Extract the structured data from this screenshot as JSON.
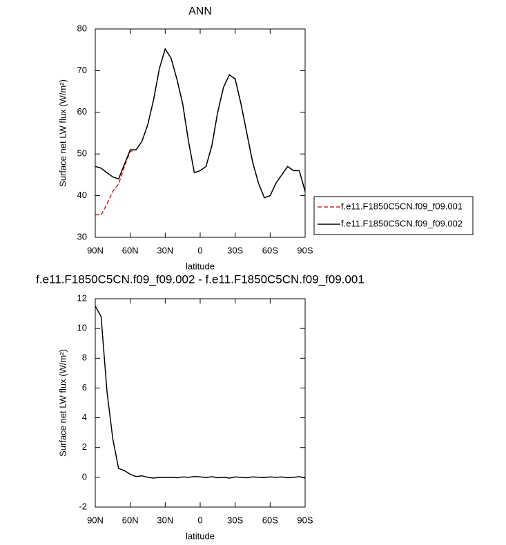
{
  "chart_data": [
    {
      "type": "line",
      "title": "ANN",
      "xlabel": "latitude",
      "ylabel": "Surface net LW flux (W/m²)",
      "x": [
        90,
        85,
        80,
        75,
        70,
        65,
        60,
        55,
        50,
        45,
        40,
        35,
        30,
        25,
        20,
        15,
        10,
        5,
        0,
        -5,
        -10,
        -15,
        -20,
        -25,
        -30,
        -35,
        -40,
        -45,
        -50,
        -55,
        -60,
        -65,
        -70,
        -75,
        -80,
        -85,
        -90
      ],
      "series": [
        {
          "name": "f.e11.F1850C5CN.f09_f09.001",
          "color": "#d62020",
          "dash": "dashed",
          "values": [
            35.5,
            35.3,
            38,
            41,
            42.8,
            47,
            50.6,
            51,
            53,
            57,
            63,
            70.5,
            75.2,
            73,
            68,
            62,
            53,
            45.5,
            46,
            47,
            52,
            60,
            66,
            69,
            68,
            62,
            55,
            48,
            43,
            39.5,
            40,
            43,
            45,
            47,
            46,
            46,
            41
          ]
        },
        {
          "name": "f.e11.F1850C5CN.f09_f09.002",
          "color": "#000000",
          "dash": "solid",
          "values": [
            47,
            46.6,
            45.5,
            44.5,
            44,
            47.5,
            51,
            51,
            53,
            57,
            63,
            70.5,
            75.2,
            73,
            68,
            62,
            53,
            45.5,
            46,
            47,
            52,
            60,
            66,
            69,
            68,
            62,
            55,
            48,
            43,
            39.5,
            40,
            43,
            45,
            47,
            46,
            46,
            41
          ]
        }
      ],
      "xlim": [
        90,
        -90
      ],
      "xticks": [
        {
          "value": 90,
          "label": "90N"
        },
        {
          "value": 60,
          "label": "60N"
        },
        {
          "value": 30,
          "label": "30N"
        },
        0,
        {
          "value": -30,
          "label": "30S"
        },
        {
          "value": -60,
          "label": "60S"
        },
        {
          "value": -90,
          "label": "90S"
        }
      ],
      "ylim": [
        30,
        80
      ],
      "yticks": [
        30,
        40,
        50,
        60,
        70,
        80
      ],
      "legend": "right"
    },
    {
      "type": "line",
      "title": "f.e11.F1850C5CN.f09_f09.002 - f.e11.F1850C5CN.f09_f09.001",
      "xlabel": "latitude",
      "ylabel": "Surface net LW flux (W/m²)",
      "x": [
        90,
        85,
        80,
        75,
        70,
        65,
        60,
        55,
        50,
        45,
        40,
        35,
        30,
        25,
        20,
        15,
        10,
        5,
        0,
        -5,
        -10,
        -15,
        -20,
        -25,
        -30,
        -35,
        -40,
        -45,
        -50,
        -55,
        -60,
        -65,
        -70,
        -75,
        -80,
        -85,
        -90
      ],
      "series": [
        {
          "color": "#000000",
          "dash": "solid",
          "values": [
            11.5,
            10.8,
            5.8,
            2.6,
            0.6,
            0.45,
            0.2,
            0.05,
            0.1,
            0,
            -0.05,
            0,
            -0.02,
            0,
            -0.03,
            0.02,
            0,
            0.05,
            0.03,
            -0.02,
            0.04,
            -0.03,
            0,
            -0.05,
            0.02,
            0,
            -0.03,
            0.03,
            0,
            -0.02,
            0.03,
            0,
            0.02,
            -0.03,
            0,
            0.04,
            -0.05
          ]
        }
      ],
      "xlim": [
        90,
        -90
      ],
      "xticks": [
        {
          "value": 90,
          "label": "90N"
        },
        {
          "value": 60,
          "label": "60N"
        },
        {
          "value": 30,
          "label": "30N"
        },
        0,
        {
          "value": -30,
          "label": "30S"
        },
        {
          "value": -60,
          "label": "60S"
        },
        {
          "value": -90,
          "label": "90S"
        }
      ],
      "ylim": [
        -2,
        12
      ],
      "yticks": [
        -2,
        0,
        2,
        4,
        6,
        8,
        10,
        12
      ]
    }
  ]
}
